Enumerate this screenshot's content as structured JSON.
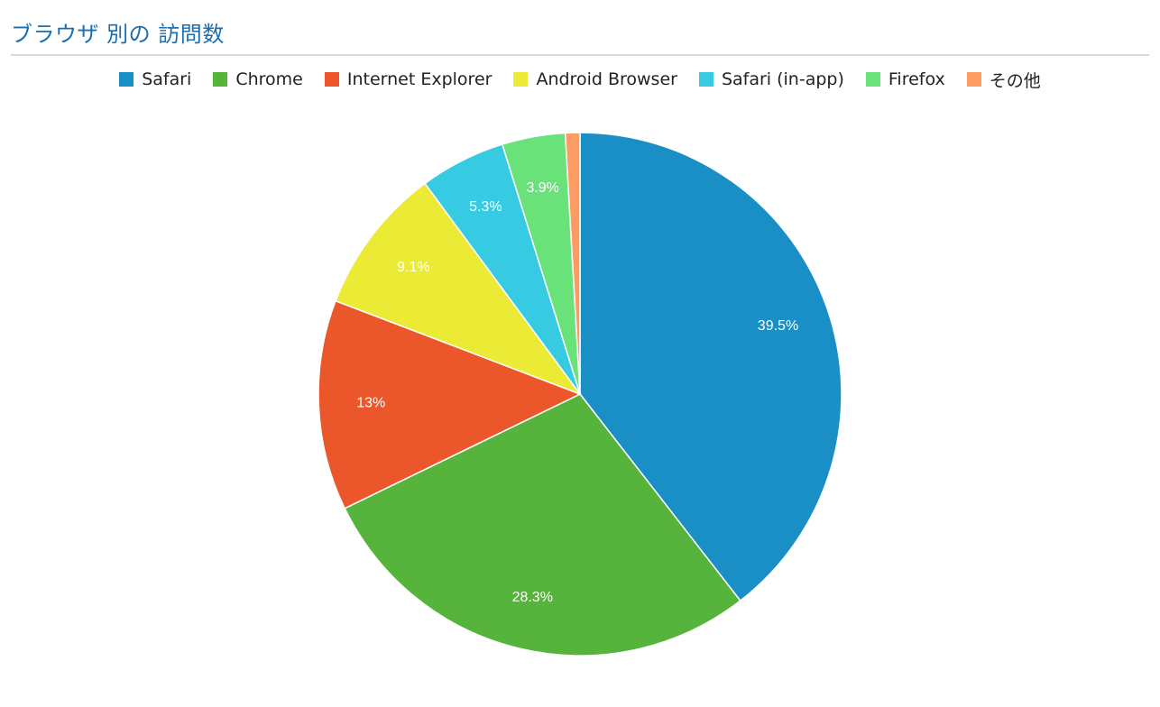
{
  "header": {
    "title": "ブラウザ 別の 訪問数"
  },
  "chart_data": {
    "type": "pie",
    "title": "ブラウザ 別の 訪問数",
    "legend_position": "top",
    "slices": [
      {
        "name": "Safari",
        "value": 39.5,
        "label": "39.5%",
        "color": "#1a8fc6"
      },
      {
        "name": "Chrome",
        "value": 28.3,
        "label": "28.3%",
        "color": "#56b33b"
      },
      {
        "name": "Internet Explorer",
        "value": 13.0,
        "label": "13%",
        "color": "#eb572b"
      },
      {
        "name": "Android Browser",
        "value": 9.1,
        "label": "9.1%",
        "color": "#ebeb35"
      },
      {
        "name": "Safari (in-app)",
        "value": 5.3,
        "label": "5.3%",
        "color": "#36cbe3"
      },
      {
        "name": "Firefox",
        "value": 3.9,
        "label": "3.9%",
        "color": "#6ae27a"
      },
      {
        "name": "その他",
        "value": 0.9,
        "label": "",
        "color": "#fd9c62"
      }
    ]
  }
}
